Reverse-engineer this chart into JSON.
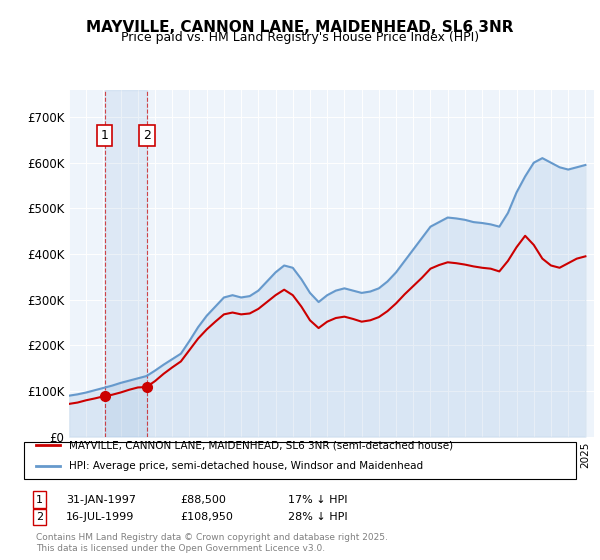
{
  "title": "MAYVILLE, CANNON LANE, MAIDENHEAD, SL6 3NR",
  "subtitle": "Price paid vs. HM Land Registry's House Price Index (HPI)",
  "legend_line1": "MAYVILLE, CANNON LANE, MAIDENHEAD, SL6 3NR (semi-detached house)",
  "legend_line2": "HPI: Average price, semi-detached house, Windsor and Maidenhead",
  "footer_line1": "Contains HM Land Registry data © Crown copyright and database right 2025.",
  "footer_line2": "This data is licensed under the Open Government Licence v3.0.",
  "sale1_label": "1",
  "sale1_date": "31-JAN-1997",
  "sale1_price": "£88,500",
  "sale1_hpi": "17% ↓ HPI",
  "sale1_year": 1997.08,
  "sale1_value": 88500,
  "sale2_label": "2",
  "sale2_date": "16-JUL-1999",
  "sale2_price": "£108,950",
  "sale2_hpi": "28% ↓ HPI",
  "sale2_year": 1999.54,
  "sale2_value": 108950,
  "price_color": "#cc0000",
  "hpi_color": "#6699cc",
  "background_color": "#eef4fb",
  "plot_bg": "#ffffff",
  "ylim_min": 0,
  "ylim_max": 750000,
  "xlabel": "",
  "ylabel": "",
  "ytick_labels": [
    "£0",
    "£100K",
    "£200K",
    "£300K",
    "£400K",
    "£500K",
    "£600K",
    "£700K"
  ],
  "ytick_values": [
    0,
    100000,
    200000,
    300000,
    400000,
    500000,
    600000,
    700000
  ]
}
